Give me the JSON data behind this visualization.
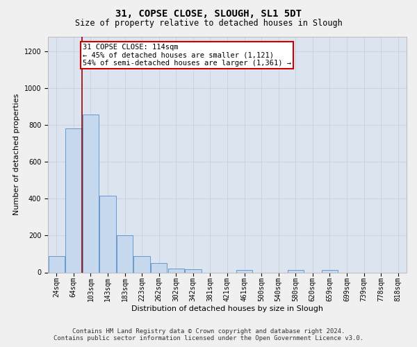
{
  "title_line1": "31, COPSE CLOSE, SLOUGH, SL1 5DT",
  "title_line2": "Size of property relative to detached houses in Slough",
  "xlabel": "Distribution of detached houses by size in Slough",
  "ylabel": "Number of detached properties",
  "categories": [
    "24sqm",
    "64sqm",
    "103sqm",
    "143sqm",
    "183sqm",
    "223sqm",
    "262sqm",
    "302sqm",
    "342sqm",
    "381sqm",
    "421sqm",
    "461sqm",
    "500sqm",
    "540sqm",
    "580sqm",
    "620sqm",
    "659sqm",
    "699sqm",
    "739sqm",
    "778sqm",
    "818sqm"
  ],
  "bar_values": [
    90,
    780,
    855,
    415,
    200,
    88,
    50,
    22,
    18,
    0,
    0,
    12,
    0,
    0,
    12,
    0,
    12,
    0,
    0,
    0,
    0
  ],
  "bar_color": "#c5d8ee",
  "bar_edge_color": "#6699cc",
  "grid_color": "#c8d0dc",
  "bg_color": "#dce4f0",
  "vline_x": 1.5,
  "vline_color": "#990000",
  "annotation_text": "31 COPSE CLOSE: 114sqm\n← 45% of detached houses are smaller (1,121)\n54% of semi-detached houses are larger (1,361) →",
  "annotation_box_color": "#ffffff",
  "annotation_box_edge": "#cc0000",
  "footer_line1": "Contains HM Land Registry data © Crown copyright and database right 2024.",
  "footer_line2": "Contains public sector information licensed under the Open Government Licence v3.0.",
  "ylim": [
    0,
    1280
  ],
  "yticks": [
    0,
    200,
    400,
    600,
    800,
    1000,
    1200
  ],
  "title_fontsize": 10,
  "subtitle_fontsize": 8.5,
  "axis_label_fontsize": 8,
  "tick_fontsize": 7,
  "footer_fontsize": 6.5,
  "annotation_fontsize": 7.5
}
